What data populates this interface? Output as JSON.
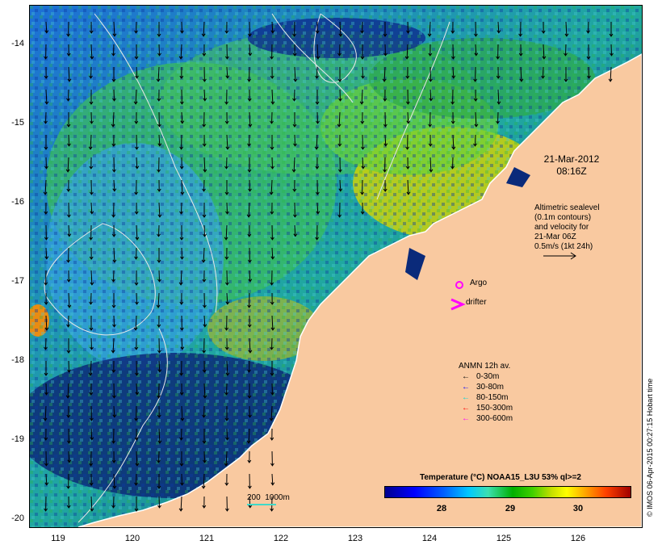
{
  "map": {
    "lat_ticks": [
      "-14",
      "-15",
      "-16",
      "-17",
      "-18",
      "-19",
      "-20"
    ],
    "lon_ticks": [
      "119",
      "120",
      "121",
      "122",
      "123",
      "124",
      "125",
      "126"
    ],
    "extent": {
      "lon": [
        118.6,
        126.7
      ],
      "lat": [
        -20.1,
        -13.6
      ]
    }
  },
  "date_label": "21-Mar-2012\n08:16Z",
  "altimetric_note": "Altimetric sealevel\n(0.1m contours)\nand velocity for\n21-Mar 06Z\n0.5m/s (1kt 24h)",
  "argo_label": "Argo",
  "drifter_label": "drifter",
  "anmn": {
    "title": "ANMN 12h av.",
    "items": [
      {
        "label": "0-30m",
        "color": "#000000"
      },
      {
        "label": "30-80m",
        "color": "#0000ff"
      },
      {
        "label": "80-150m",
        "color": "#00d8d8"
      },
      {
        "label": "150-300m",
        "color": "#ff0000"
      },
      {
        "label": "300-600m",
        "color": "#ff00ff"
      }
    ]
  },
  "colorbar": {
    "title": "Temperature (°C) NOAA15_L3U 53% ql>=2",
    "ticks": [
      "28",
      "29",
      "30"
    ]
  },
  "scale_label": "200  1000m",
  "credit": "© IMOS 06-Apr-2015 00:27:15 Hobart time",
  "colors": {
    "land": "#f9c9a0",
    "ocean_deep": "#0a2a7a",
    "argo": "#ff00ff",
    "drifter": "#ff00ff"
  }
}
